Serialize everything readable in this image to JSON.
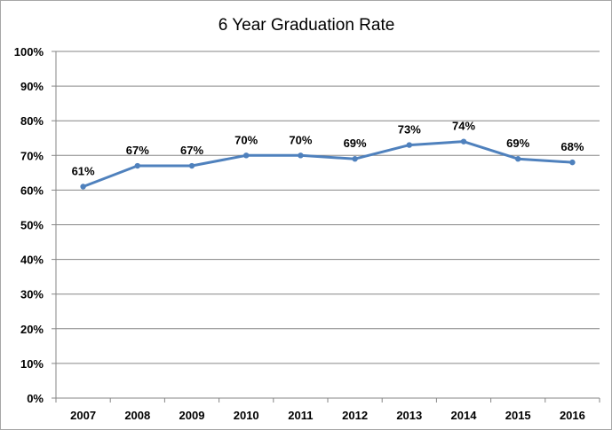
{
  "chart_data": {
    "type": "line",
    "title": "6 Year Graduation Rate",
    "xlabel": "",
    "ylabel": "",
    "categories": [
      "2007",
      "2008",
      "2009",
      "2010",
      "2011",
      "2012",
      "2013",
      "2014",
      "2015",
      "2016"
    ],
    "series": [
      {
        "values": [
          61,
          67,
          67,
          70,
          70,
          69,
          73,
          74,
          69,
          68
        ],
        "data_labels": [
          "61%",
          "67%",
          "67%",
          "70%",
          "70%",
          "69%",
          "73%",
          "74%",
          "69%",
          "68%"
        ],
        "color": "#4f81bd"
      }
    ],
    "ylim": [
      0,
      100
    ],
    "y_ticks": [
      "0%",
      "10%",
      "20%",
      "30%",
      "40%",
      "50%",
      "60%",
      "70%",
      "80%",
      "90%",
      "100%"
    ],
    "grid": true,
    "legend": "none"
  }
}
